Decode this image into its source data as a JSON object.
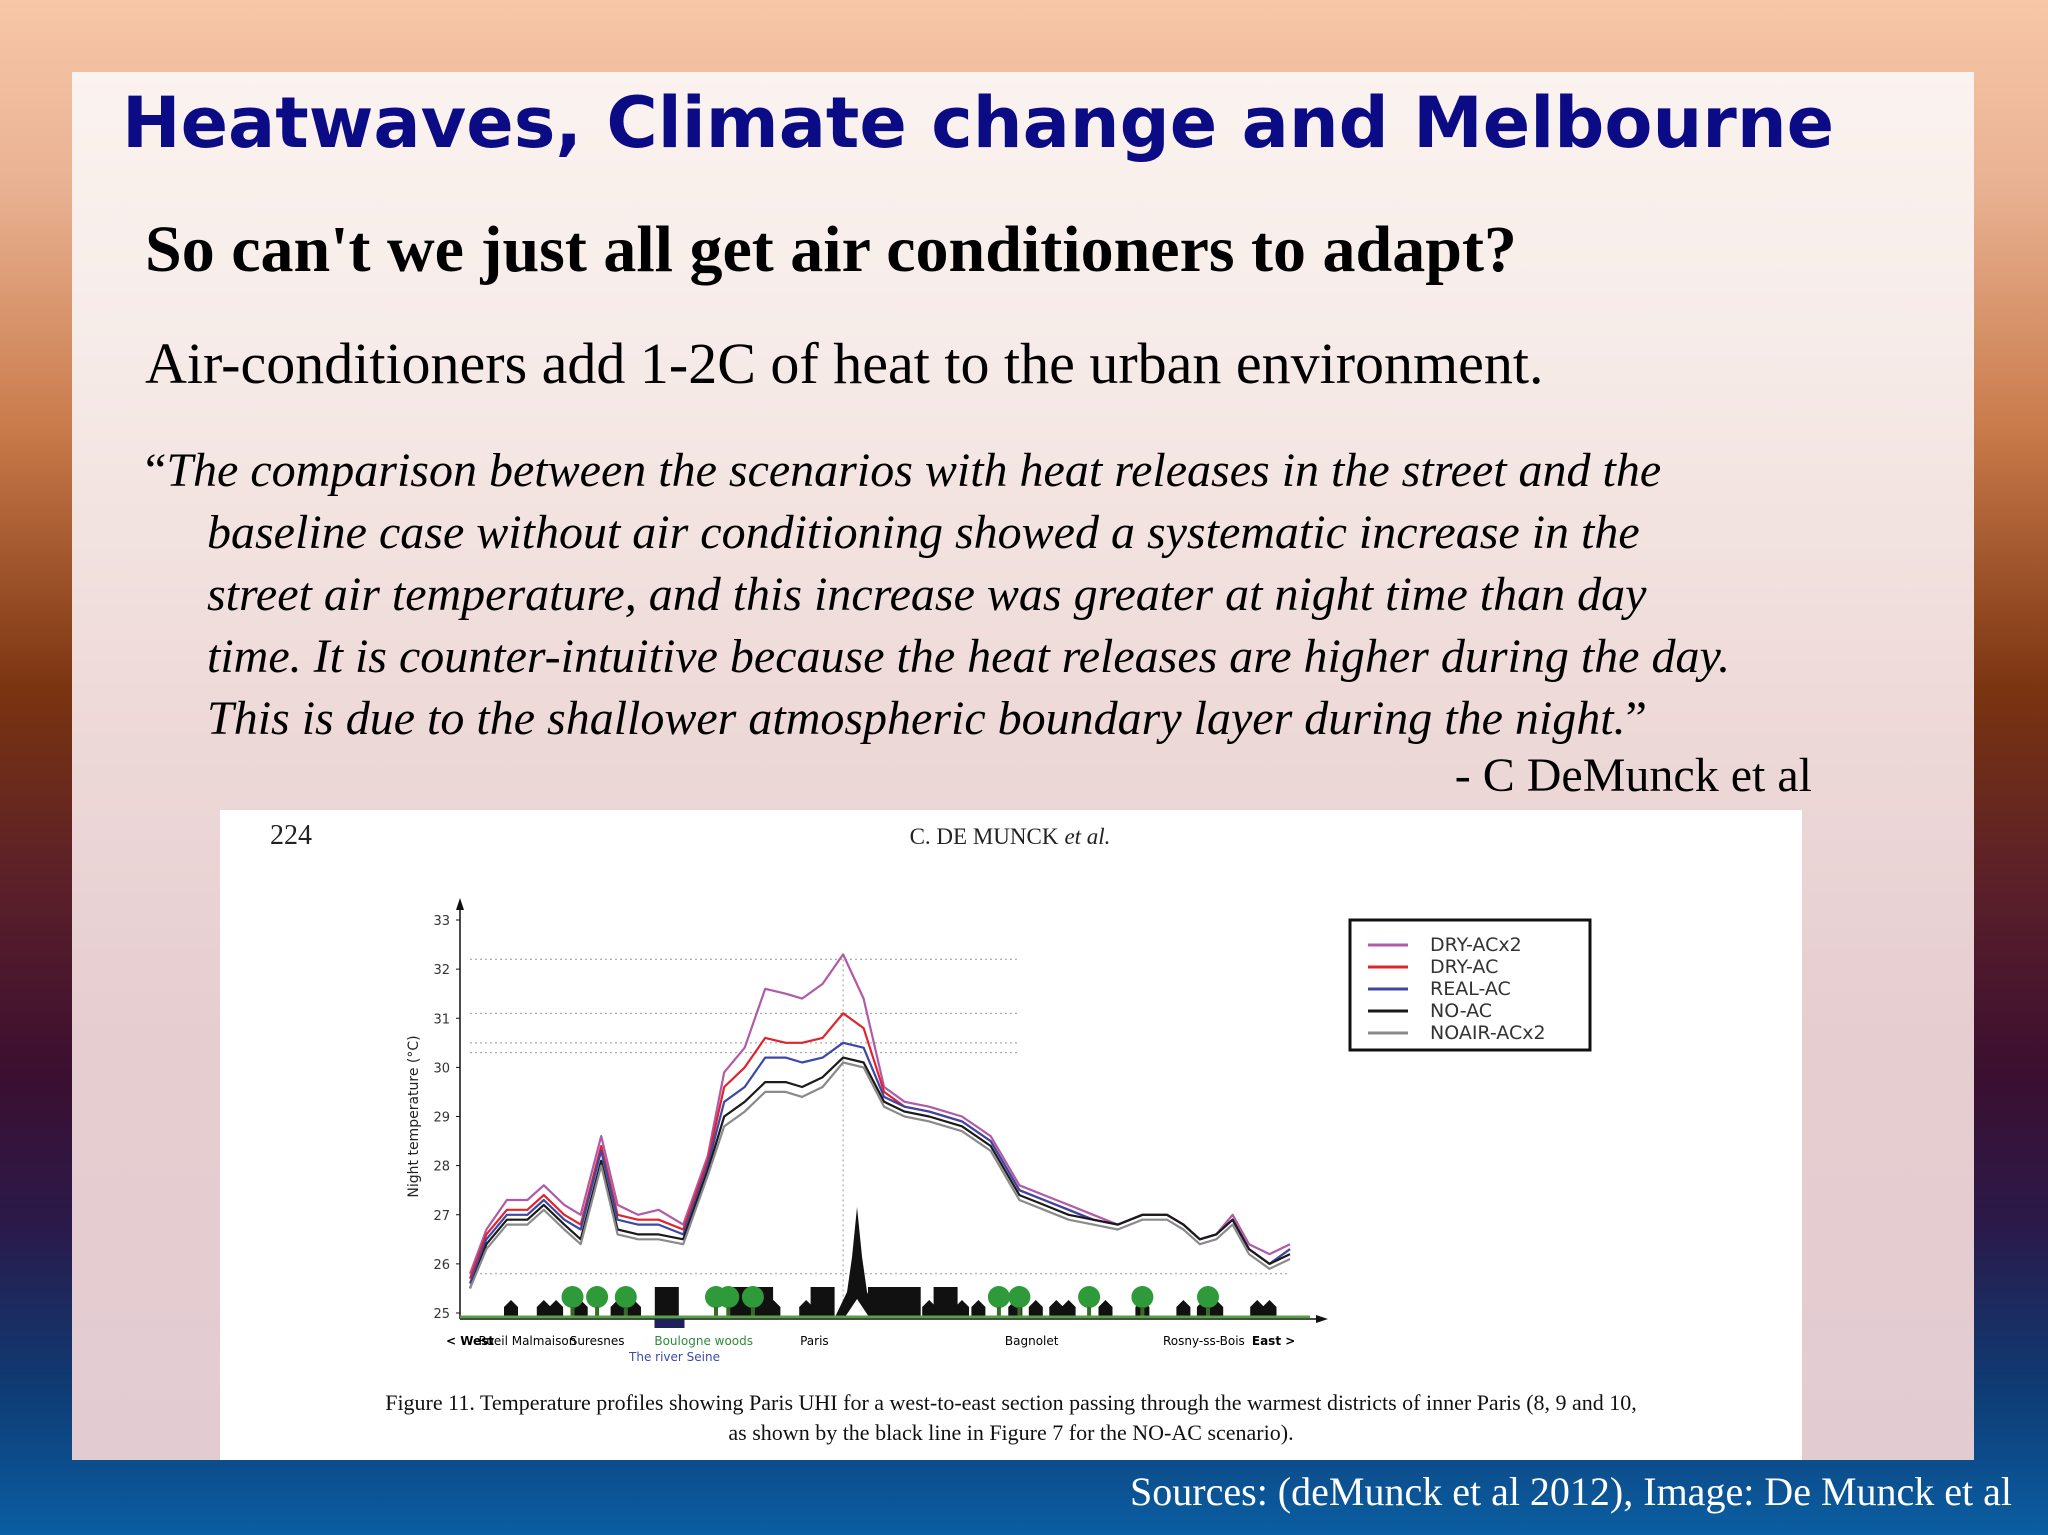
{
  "slide": {
    "title": "Heatwaves, Climate change and Melbourne",
    "subtitle": "So can't we just all get air conditioners to adapt?",
    "statement": "Air-conditioners add 1-2C of heat to the urban environment.",
    "quote": {
      "open_mark": "“",
      "lines": [
        "The comparison between the scenarios with heat releases in the street and the",
        "baseline case without air conditioning showed a systematic increase in the",
        "street air temperature, and this increase was greater at night time than day",
        "time. It is counter-intuitive because the heat releases are higher during the day.",
        "This is due to the shallower atmospheric boundary layer during the night."
      ],
      "close_mark": "”"
    },
    "attribution": "- C DeMunck et al",
    "sources": "Sources: (deMunck et al 2012), Image: De Munck et al"
  },
  "figure": {
    "page_number": "224",
    "running_head": "C. DE MUNCK",
    "running_head_italic": "et al.",
    "caption_line1": "Figure 11. Temperature profiles showing Paris UHI for a west-to-east section passing through the warmest districts of inner Paris (8, 9 and 10,",
    "caption_line2": "as shown by the black line in Figure 7 for the NO-AC scenario).",
    "place_labels": [
      {
        "text": "< West",
        "t": 0.0,
        "color": "#000000",
        "bold": true
      },
      {
        "text": "Rueil Malmaison",
        "t": 0.07,
        "color": "#000000",
        "bold": false
      },
      {
        "text": "Suresnes",
        "t": 0.155,
        "color": "#000000",
        "bold": false
      },
      {
        "text": "Boulogne woods",
        "t": 0.285,
        "color": "#2e8b3a",
        "bold": false
      },
      {
        "text": "Paris",
        "t": 0.42,
        "color": "#000000",
        "bold": false
      },
      {
        "text": "Bagnolet",
        "t": 0.685,
        "color": "#000000",
        "bold": false
      },
      {
        "text": "Rosny-ss-Bois",
        "t": 0.895,
        "color": "#000000",
        "bold": false
      },
      {
        "text": "East >",
        "t": 0.98,
        "color": "#000000",
        "bold": true
      }
    ],
    "river_label": "The river Seine"
  },
  "chart_data": {
    "type": "line",
    "title": "",
    "xlabel": "",
    "ylabel": "Night temperature (°C)",
    "ylim": [
      25,
      33
    ],
    "yticks": [
      25,
      26,
      27,
      28,
      29,
      30,
      31,
      32,
      33
    ],
    "x": [
      0,
      0.02,
      0.045,
      0.07,
      0.09,
      0.115,
      0.135,
      0.16,
      0.18,
      0.205,
      0.23,
      0.26,
      0.29,
      0.31,
      0.335,
      0.36,
      0.385,
      0.405,
      0.43,
      0.455,
      0.48,
      0.505,
      0.53,
      0.56,
      0.6,
      0.635,
      0.67,
      0.7,
      0.73,
      0.76,
      0.79,
      0.82,
      0.85,
      0.87,
      0.89,
      0.91,
      0.93,
      0.95,
      0.975,
      1.0
    ],
    "legend_position": "top-right",
    "series": [
      {
        "name": "DRY-ACx2",
        "color": "#b05aa8",
        "values": [
          25.8,
          26.7,
          27.3,
          27.3,
          27.6,
          27.2,
          27.0,
          28.6,
          27.2,
          27.0,
          27.1,
          26.8,
          28.2,
          29.9,
          30.4,
          31.6,
          31.5,
          31.4,
          31.7,
          32.3,
          31.4,
          29.6,
          29.3,
          29.2,
          29.0,
          28.6,
          27.6,
          27.4,
          27.2,
          27.0,
          26.8,
          27.0,
          27.0,
          26.8,
          26.5,
          26.6,
          27.0,
          26.4,
          26.2,
          26.4
        ]
      },
      {
        "name": "DRY-AC",
        "color": "#e0242c",
        "values": [
          25.7,
          26.6,
          27.1,
          27.1,
          27.4,
          27.0,
          26.8,
          28.4,
          27.0,
          26.9,
          26.9,
          26.7,
          28.1,
          29.6,
          30.0,
          30.6,
          30.5,
          30.5,
          30.6,
          31.1,
          30.8,
          29.5,
          29.2,
          29.1,
          28.9,
          28.5,
          27.5,
          27.3,
          27.1,
          26.9,
          26.8,
          27.0,
          27.0,
          26.8,
          26.5,
          26.6,
          26.9,
          26.3,
          26.0,
          26.3
        ]
      },
      {
        "name": "REAL-AC",
        "color": "#3c47a8",
        "values": [
          25.6,
          26.5,
          27.0,
          27.0,
          27.3,
          26.9,
          26.7,
          28.3,
          26.9,
          26.8,
          26.8,
          26.6,
          28.0,
          29.3,
          29.6,
          30.2,
          30.2,
          30.1,
          30.2,
          30.5,
          30.4,
          29.4,
          29.2,
          29.1,
          28.9,
          28.5,
          27.5,
          27.3,
          27.1,
          26.9,
          26.8,
          27.0,
          27.0,
          26.8,
          26.5,
          26.6,
          26.9,
          26.3,
          26.0,
          26.3
        ]
      },
      {
        "name": "NO-AC",
        "color": "#1a1a1a",
        "values": [
          25.5,
          26.4,
          26.9,
          26.9,
          27.2,
          26.8,
          26.5,
          28.1,
          26.7,
          26.6,
          26.6,
          26.5,
          27.9,
          29.0,
          29.3,
          29.7,
          29.7,
          29.6,
          29.8,
          30.2,
          30.1,
          29.3,
          29.1,
          29.0,
          28.8,
          28.4,
          27.4,
          27.2,
          27.0,
          26.9,
          26.8,
          27.0,
          27.0,
          26.8,
          26.5,
          26.6,
          26.9,
          26.3,
          26.0,
          26.2
        ]
      },
      {
        "name": "NOAIR-ACx2",
        "color": "#8a8a8a",
        "values": [
          25.5,
          26.3,
          26.8,
          26.8,
          27.1,
          26.7,
          26.4,
          28.0,
          26.6,
          26.5,
          26.5,
          26.4,
          27.8,
          28.8,
          29.1,
          29.5,
          29.5,
          29.4,
          29.6,
          30.1,
          30.0,
          29.2,
          29.0,
          28.9,
          28.7,
          28.3,
          27.3,
          27.1,
          26.9,
          26.8,
          26.7,
          26.9,
          26.9,
          26.7,
          26.4,
          26.5,
          26.8,
          26.2,
          25.9,
          26.1
        ]
      }
    ]
  }
}
